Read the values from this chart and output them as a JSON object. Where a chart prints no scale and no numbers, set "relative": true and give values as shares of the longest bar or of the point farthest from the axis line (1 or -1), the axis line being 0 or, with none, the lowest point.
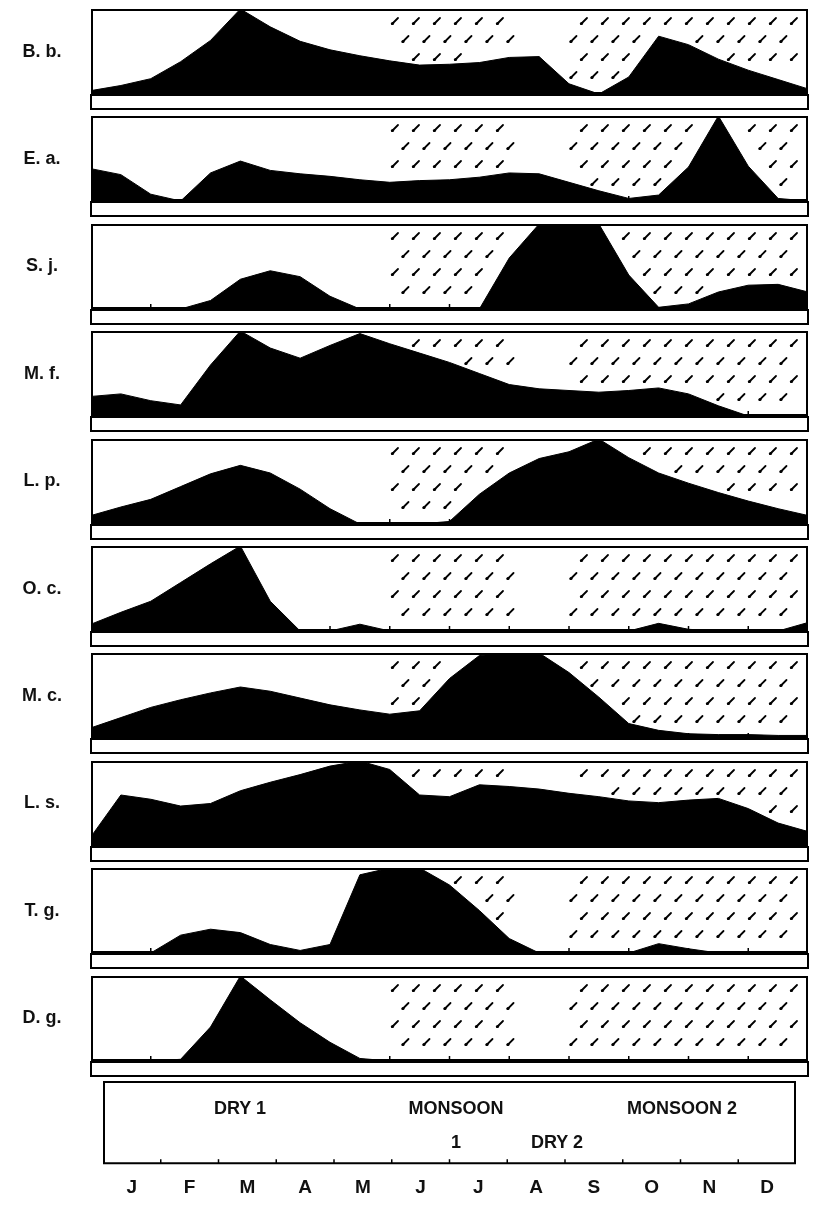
{
  "chart_data": [
    {
      "type": "area",
      "ylabel": "B. b.",
      "relative": true,
      "color": "#000000",
      "tick_labels": false,
      "categories": [
        null,
        null,
        null,
        null,
        null,
        null,
        null,
        null,
        null,
        null,
        null,
        null,
        null,
        null,
        null,
        null,
        null,
        null,
        null,
        null,
        null,
        null,
        null,
        null,
        null
      ],
      "values": [
        0.04,
        0.1,
        0.18,
        0.38,
        0.63,
        1,
        0.79,
        0.62,
        0.52,
        0.45,
        0.39,
        0.34,
        0.35,
        0.37,
        0.43,
        0.44,
        0.12,
        0,
        0.2,
        0.68,
        0.58,
        0.41,
        0.28,
        0.17,
        0.06
      ]
    },
    {
      "type": "area",
      "ylabel": "E. a.",
      "relative": true,
      "color": "#000000",
      "tick_labels": false,
      "categories": [
        null,
        null,
        null,
        null,
        null,
        null,
        null,
        null,
        null,
        null,
        null,
        null,
        null,
        null,
        null,
        null,
        null,
        null,
        null,
        null,
        null,
        null,
        null,
        null,
        null
      ],
      "values": [
        0.38,
        0.31,
        0.08,
        0,
        0.33,
        0.47,
        0.36,
        0.32,
        0.29,
        0.25,
        0.22,
        0.24,
        0.25,
        0.28,
        0.33,
        0.32,
        0.22,
        0.12,
        0.03,
        0.07,
        0.4,
        1,
        0.41,
        0.03,
        0
      ]
    },
    {
      "type": "area",
      "ylabel": "S. j.",
      "relative": true,
      "color": "#000000",
      "tick_labels": false,
      "categories": [
        null,
        null,
        null,
        null,
        null,
        null,
        null,
        null,
        null,
        null,
        null,
        null,
        null,
        null,
        null,
        null,
        null,
        null,
        null,
        null,
        null,
        null,
        null,
        null,
        null
      ],
      "values": [
        0,
        0,
        0,
        0,
        0.1,
        0.35,
        0.45,
        0.38,
        0.15,
        0,
        0,
        0,
        0,
        0,
        0.6,
        1,
        1,
        1,
        0.4,
        0.02,
        0.06,
        0.2,
        0.28,
        0.29,
        0.2
      ]
    },
    {
      "type": "area",
      "ylabel": "M. f.",
      "relative": true,
      "color": "#000000",
      "tick_labels": false,
      "categories": [
        null,
        null,
        null,
        null,
        null,
        null,
        null,
        null,
        null,
        null,
        null,
        null,
        null,
        null,
        null,
        null,
        null,
        null,
        null,
        null,
        null,
        null,
        null,
        null,
        null
      ],
      "values": [
        0.23,
        0.26,
        0.18,
        0.13,
        0.6,
        1,
        0.8,
        0.68,
        0.83,
        0.97,
        0.85,
        0.74,
        0.63,
        0.5,
        0.37,
        0.32,
        0.3,
        0.28,
        0.3,
        0.33,
        0.26,
        0.12,
        0,
        0,
        0
      ]
    },
    {
      "type": "area",
      "ylabel": "L. p.",
      "relative": true,
      "color": "#000000",
      "tick_labels": false,
      "categories": [
        null,
        null,
        null,
        null,
        null,
        null,
        null,
        null,
        null,
        null,
        null,
        null,
        null,
        null,
        null,
        null,
        null,
        null,
        null,
        null,
        null,
        null,
        null,
        null,
        null
      ],
      "values": [
        0.1,
        0.2,
        0.29,
        0.44,
        0.59,
        0.69,
        0.6,
        0.41,
        0.18,
        0,
        0,
        0,
        0.03,
        0.35,
        0.6,
        0.77,
        0.85,
        1,
        0.78,
        0.6,
        0.48,
        0.37,
        0.27,
        0.18,
        0.1
      ]
    },
    {
      "type": "area",
      "ylabel": "O. c.",
      "relative": true,
      "color": "#000000",
      "tick_labels": false,
      "categories": [
        null,
        null,
        null,
        null,
        null,
        null,
        null,
        null,
        null,
        null,
        null,
        null,
        null,
        null,
        null,
        null,
        null,
        null,
        null,
        null,
        null,
        null,
        null,
        null,
        null
      ],
      "values": [
        0.08,
        0.22,
        0.35,
        0.57,
        0.79,
        1,
        0.35,
        0,
        0,
        0.08,
        0,
        0,
        0,
        0,
        0,
        0,
        0,
        0,
        0,
        0.09,
        0.02,
        0,
        0,
        0,
        0.1
      ]
    },
    {
      "type": "area",
      "ylabel": "M. c.",
      "relative": true,
      "color": "#000000",
      "tick_labels": false,
      "categories": [
        null,
        null,
        null,
        null,
        null,
        null,
        null,
        null,
        null,
        null,
        null,
        null,
        null,
        null,
        null,
        null,
        null,
        null,
        null,
        null,
        null,
        null,
        null,
        null,
        null
      ],
      "values": [
        0.12,
        0.24,
        0.36,
        0.45,
        0.53,
        0.6,
        0.55,
        0.47,
        0.39,
        0.33,
        0.28,
        0.32,
        0.7,
        0.97,
        1,
        1,
        0.77,
        0.48,
        0.17,
        0.09,
        0.05,
        0.04,
        0.04,
        0.03,
        0.03
      ]
    },
    {
      "type": "area",
      "ylabel": "L. s.",
      "relative": true,
      "color": "#000000",
      "tick_labels": false,
      "categories": [
        null,
        null,
        null,
        null,
        null,
        null,
        null,
        null,
        null,
        null,
        null,
        null,
        null,
        null,
        null,
        null,
        null,
        null,
        null,
        null,
        null,
        null,
        null,
        null,
        null
      ],
      "values": [
        0.11,
        0.6,
        0.55,
        0.47,
        0.5,
        0.65,
        0.75,
        0.84,
        0.94,
        1,
        0.9,
        0.6,
        0.58,
        0.72,
        0.7,
        0.67,
        0.62,
        0.58,
        0.53,
        0.51,
        0.54,
        0.56,
        0.44,
        0.27,
        0.17
      ]
    },
    {
      "type": "area",
      "ylabel": "T. g.",
      "relative": true,
      "color": "#000000",
      "tick_labels": false,
      "categories": [
        null,
        null,
        null,
        null,
        null,
        null,
        null,
        null,
        null,
        null,
        null,
        null,
        null,
        null,
        null,
        null,
        null,
        null,
        null,
        null,
        null,
        null,
        null,
        null,
        null
      ],
      "values": [
        0,
        0,
        0,
        0.21,
        0.28,
        0.24,
        0.1,
        0.03,
        0.1,
        0.92,
        1,
        1,
        0.8,
        0.5,
        0.17,
        0,
        0,
        0,
        0,
        0.11,
        0.05,
        0,
        0,
        0,
        0
      ]
    },
    {
      "type": "area",
      "ylabel": "D. g.",
      "relative": true,
      "color": "#000000",
      "tick_labels": false,
      "categories": [
        null,
        null,
        null,
        null,
        null,
        null,
        null,
        null,
        null,
        null,
        null,
        null,
        null,
        null,
        null,
        null,
        null,
        null,
        null,
        null,
        null,
        null,
        null,
        null,
        null
      ],
      "values": [
        0,
        0,
        0,
        0.02,
        0.4,
        1,
        0.72,
        0.45,
        0.22,
        0.03,
        0,
        0,
        0,
        0,
        0,
        0,
        0,
        0,
        0,
        0,
        0,
        0,
        0,
        0,
        0
      ]
    },
    {
      "type": "other",
      "categories": [
        null,
        "J",
        null,
        "F",
        null,
        "M",
        null,
        "A",
        null,
        "M",
        null,
        "J",
        null,
        "J",
        null,
        "A",
        null,
        "S",
        null,
        "O",
        null,
        "N",
        null,
        "D",
        null
      ],
      "annotations": [
        "DRY 1",
        "MONSOON 1",
        "DRY 2",
        "MONSOON 2"
      ]
    }
  ]
}
